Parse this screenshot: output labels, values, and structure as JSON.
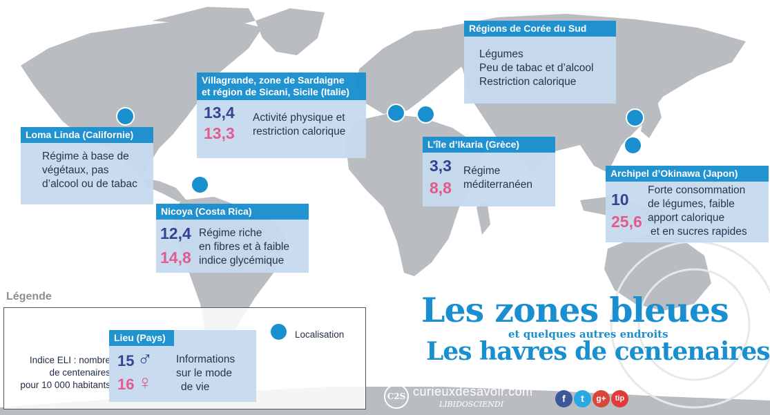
{
  "colors": {
    "accent": "#1a8fd0",
    "male": "#2d3e8e",
    "female": "#e2568a",
    "card": "#c7daee",
    "land": "#b9bcc0"
  },
  "regions": {
    "loma_linda": {
      "title": "Loma Linda (Californie)",
      "text": [
        "Régime à base de",
        "végétaux, pas",
        "d’alcool ou de tabac"
      ]
    },
    "sardaigne": {
      "title_l1": "Villagrande, zone de Sardaigne",
      "title_l2": "et région de Sicani, Sicile (Italie)",
      "male": "13,4",
      "female": "13,3",
      "text": [
        "Activité physique et",
        "restriction calorique"
      ]
    },
    "coree": {
      "title": "Régions de Corée du Sud",
      "text": [
        "Légumes",
        "Peu de tabac et d’alcool",
        "Restriction calorique"
      ]
    },
    "ikaria": {
      "title": "L’île d’Ikaria (Grèce)",
      "male": "3,3",
      "female": "8,8",
      "text": [
        "Régime",
        "méditerranéen"
      ]
    },
    "nicoya": {
      "title": "Nicoya (Costa Rica)",
      "male": "12,4",
      "female": "14,8",
      "text": [
        "Régime riche",
        "en fibres et à faible",
        "indice glycémique"
      ]
    },
    "okinawa": {
      "title": "Archipel d’Okinawa (Japon)",
      "male": "10",
      "female": "25,6",
      "text": [
        "Forte consommation",
        "de légumes, faible",
        "apport calorique",
        "et en sucres rapides"
      ]
    }
  },
  "legend": {
    "heading": "Légende",
    "dot_label": "Localisation",
    "eli_text": [
      "Indice ELI : nombre",
      "de centenaires",
      "pour 10 000 habitants"
    ],
    "card_title": "Lieu (Pays)",
    "male": "15",
    "female": "16",
    "male_symbol": "♂",
    "female_symbol": "♀",
    "text": [
      "Informations",
      "sur le mode",
      "de vie"
    ]
  },
  "title": {
    "line1": "Les zones bleues",
    "subtitle": "et quelques autres endroits",
    "line2": "Les havres de centenaires"
  },
  "brand": {
    "logo": "C2S",
    "site": "curieuxdesavoir.com",
    "tagline": "LIBIDOSCIENDI"
  },
  "social": [
    {
      "icon": "facebook-icon",
      "label": "f",
      "color": "#3b5998"
    },
    {
      "icon": "twitter-icon",
      "label": "t",
      "color": "#29a9e1"
    },
    {
      "icon": "google-plus-icon",
      "label": "g+",
      "color": "#d9473b"
    },
    {
      "icon": "tip-icon",
      "label": "tip",
      "color": "#e03a3a"
    }
  ]
}
